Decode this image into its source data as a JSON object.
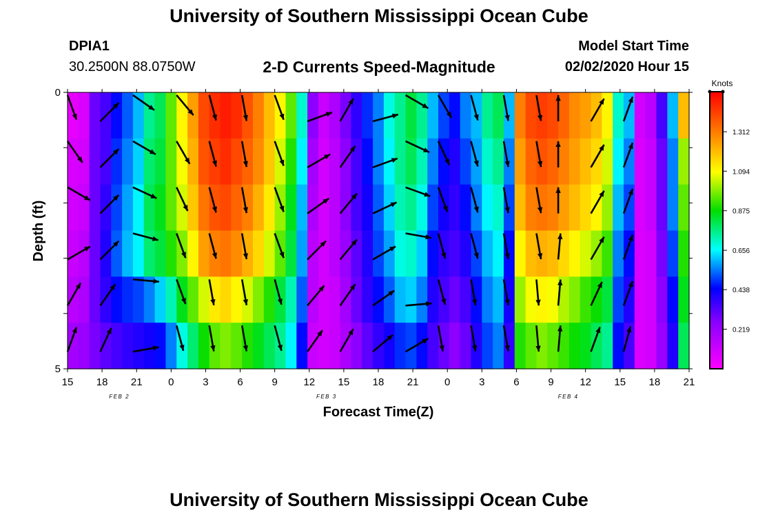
{
  "header": {
    "title": "University of Southern Mississippi Ocean Cube",
    "station_id": "DPIA1",
    "station_coords": "30.2500N 88.0750W",
    "chart_title": "2-D Currents Speed-Magnitude",
    "model_start_label": "Model Start Time",
    "model_start_value": "02/02/2020 Hour 15"
  },
  "footer": {
    "title": "University of Southern Mississippi Ocean Cube"
  },
  "chart_data": {
    "type": "heatmap",
    "title": "2-D Currents Speed-Magnitude",
    "xlabel": "Forecast Time(Z)",
    "ylabel": "Depth (ft)",
    "x_tick_labels": [
      "15",
      "18",
      "21",
      "0",
      "3",
      "6",
      "9",
      "12",
      "15",
      "18",
      "21",
      "0",
      "3",
      "6",
      "9",
      "12",
      "15",
      "18",
      "21"
    ],
    "date_labels": [
      {
        "label": "FEB 2",
        "after_tick": 1
      },
      {
        "label": "FEB 3",
        "after_tick": 7
      },
      {
        "label": "FEB 4",
        "after_tick": 14
      }
    ],
    "y_tick_labels": [
      "0",
      "",
      "",
      "",
      "",
      "5"
    ],
    "ylim": [
      0,
      5
    ],
    "colorbar": {
      "unit": "Knots",
      "ticks": [
        "1.312",
        "1.094",
        "0.875",
        "0.656",
        "0.438",
        "0.219"
      ],
      "tick_values": [
        1.312,
        1.094,
        0.875,
        0.656,
        0.438,
        0.219
      ],
      "range": [
        0.0,
        1.53
      ]
    },
    "time_hours": [
      15,
      16,
      17,
      18,
      19,
      20,
      21,
      22,
      23,
      24,
      25,
      26,
      27,
      28,
      29,
      30,
      31,
      32,
      33,
      34,
      35,
      36,
      37,
      38,
      39,
      40,
      41,
      42,
      43,
      44,
      45,
      46,
      47,
      48,
      49,
      50,
      51,
      52,
      53,
      54,
      55,
      56,
      57,
      58,
      59,
      60,
      61,
      62,
      63,
      64,
      65,
      66,
      67,
      68,
      69,
      70,
      71,
      72
    ],
    "depth_layers": [
      0,
      1,
      2,
      3,
      4,
      5
    ],
    "speed_knots": [
      [
        0.05,
        0.08,
        0.3,
        0.35,
        0.45,
        0.52,
        0.6,
        0.75,
        0.8,
        0.95,
        1.1,
        1.25,
        1.4,
        1.45,
        1.48,
        1.45,
        1.38,
        1.3,
        1.2,
        1.1,
        0.95,
        0.7,
        0.25,
        0.12,
        0.18,
        0.28,
        0.38,
        0.48,
        0.55,
        0.68,
        0.75,
        0.82,
        0.75,
        0.6,
        0.5,
        0.45,
        0.55,
        0.6,
        0.75,
        0.8,
        0.6,
        1.3,
        1.4,
        1.42,
        1.4,
        1.35,
        1.28,
        1.25,
        1.2,
        1.1,
        0.7,
        0.6,
        0.1,
        0.15,
        0.35,
        0.6,
        1.2,
        1.3
      ],
      [
        0.08,
        0.1,
        0.3,
        0.35,
        0.48,
        0.55,
        0.62,
        0.78,
        0.82,
        0.95,
        1.08,
        1.22,
        1.38,
        1.42,
        1.45,
        1.4,
        1.35,
        1.28,
        1.18,
        1.05,
        0.9,
        0.65,
        0.2,
        0.1,
        0.15,
        0.25,
        0.35,
        0.45,
        0.55,
        0.65,
        0.75,
        0.8,
        0.72,
        0.55,
        0.45,
        0.4,
        0.5,
        0.58,
        0.7,
        0.75,
        0.55,
        1.25,
        1.35,
        1.38,
        1.35,
        1.3,
        1.25,
        1.2,
        1.15,
        1.05,
        0.65,
        0.55,
        0.08,
        0.12,
        0.3,
        0.55,
        1.0,
        0.7
      ],
      [
        0.1,
        0.12,
        0.3,
        0.38,
        0.5,
        0.58,
        0.65,
        0.8,
        0.85,
        0.95,
        1.05,
        1.18,
        1.32,
        1.38,
        1.4,
        1.35,
        1.3,
        1.22,
        1.12,
        1.0,
        0.85,
        0.6,
        0.18,
        0.1,
        0.15,
        0.25,
        0.35,
        0.42,
        0.52,
        0.62,
        0.72,
        0.75,
        0.68,
        0.5,
        0.42,
        0.38,
        0.45,
        0.55,
        0.65,
        0.7,
        0.5,
        1.2,
        1.3,
        1.32,
        1.3,
        1.25,
        1.2,
        1.15,
        1.1,
        1.0,
        0.6,
        0.5,
        0.08,
        0.12,
        0.3,
        0.55,
        0.95,
        0.62
      ],
      [
        0.12,
        0.15,
        0.3,
        0.4,
        0.52,
        0.6,
        0.65,
        0.78,
        0.82,
        0.9,
        0.98,
        1.1,
        1.25,
        1.3,
        1.32,
        1.28,
        1.22,
        1.15,
        1.05,
        0.95,
        0.82,
        0.58,
        0.15,
        0.1,
        0.15,
        0.22,
        0.32,
        0.4,
        0.5,
        0.58,
        0.68,
        0.7,
        0.62,
        0.45,
        0.38,
        0.35,
        0.4,
        0.5,
        0.6,
        0.65,
        0.45,
        1.1,
        1.2,
        1.22,
        1.2,
        1.15,
        1.1,
        1.05,
        1.0,
        0.92,
        0.55,
        0.45,
        0.08,
        0.1,
        0.28,
        0.5,
        0.9,
        0.6
      ],
      [
        0.15,
        0.18,
        0.3,
        0.38,
        0.45,
        0.48,
        0.5,
        0.55,
        0.62,
        0.72,
        0.85,
        0.95,
        1.05,
        1.12,
        1.15,
        1.1,
        1.05,
        0.98,
        0.9,
        0.82,
        0.72,
        0.52,
        0.15,
        0.1,
        0.12,
        0.2,
        0.3,
        0.38,
        0.45,
        0.52,
        0.6,
        0.62,
        0.55,
        0.4,
        0.35,
        0.3,
        0.35,
        0.45,
        0.55,
        0.6,
        0.42,
        1.0,
        1.08,
        1.1,
        1.08,
        1.02,
        0.98,
        0.92,
        0.88,
        0.82,
        0.5,
        0.4,
        0.08,
        0.1,
        0.25,
        0.45,
        0.85,
        0.58
      ],
      [
        0.2,
        0.22,
        0.28,
        0.32,
        0.35,
        0.38,
        0.4,
        0.42,
        0.45,
        0.55,
        0.68,
        0.78,
        0.88,
        0.95,
        0.98,
        0.95,
        0.9,
        0.85,
        0.8,
        0.75,
        0.65,
        0.45,
        0.12,
        0.1,
        0.12,
        0.18,
        0.25,
        0.32,
        0.38,
        0.42,
        0.48,
        0.5,
        0.45,
        0.35,
        0.3,
        0.25,
        0.3,
        0.4,
        0.5,
        0.55,
        0.38,
        0.9,
        0.95,
        0.98,
        0.95,
        0.92,
        0.88,
        0.85,
        0.8,
        0.75,
        0.45,
        0.35,
        0.08,
        0.1,
        0.22,
        0.4,
        0.8,
        0.55
      ]
    ],
    "vectors": [
      {
        "hour": 15,
        "dirs_deg": [
          160,
          145,
          120,
          60,
          30,
          20
        ]
      },
      {
        "hour": 18,
        "dirs_deg": [
          45,
          45,
          45,
          45,
          35,
          25
        ]
      },
      {
        "hour": 21,
        "dirs_deg": [
          125,
          120,
          115,
          105,
          95,
          80
        ]
      },
      {
        "hour": 25,
        "dirs_deg": [
          140,
          150,
          155,
          160,
          160,
          165
        ]
      },
      {
        "hour": 28,
        "dirs_deg": [
          165,
          165,
          165,
          165,
          170,
          170
        ]
      },
      {
        "hour": 31,
        "dirs_deg": [
          170,
          170,
          170,
          170,
          170,
          170
        ]
      },
      {
        "hour": 34,
        "dirs_deg": [
          160,
          160,
          160,
          160,
          165,
          165
        ]
      },
      {
        "hour": 37,
        "dirs_deg": [
          70,
          60,
          55,
          45,
          40,
          35
        ]
      },
      {
        "hour": 40,
        "dirs_deg": [
          30,
          35,
          40,
          40,
          35,
          30
        ]
      },
      {
        "hour": 43,
        "dirs_deg": [
          75,
          70,
          65,
          60,
          55,
          50
        ]
      },
      {
        "hour": 46,
        "dirs_deg": [
          120,
          115,
          110,
          100,
          85,
          60
        ]
      },
      {
        "hour": 49,
        "dirs_deg": [
          150,
          155,
          160,
          165,
          165,
          170
        ]
      },
      {
        "hour": 52,
        "dirs_deg": [
          165,
          165,
          165,
          165,
          170,
          170
        ]
      },
      {
        "hour": 55,
        "dirs_deg": [
          170,
          170,
          170,
          170,
          170,
          170
        ]
      },
      {
        "hour": 58,
        "dirs_deg": [
          170,
          170,
          170,
          170,
          175,
          175
        ]
      },
      {
        "hour": 60,
        "dirs_deg": [
          0,
          0,
          0,
          5,
          5,
          5
        ]
      },
      {
        "hour": 63,
        "dirs_deg": [
          30,
          30,
          30,
          30,
          25,
          20
        ]
      },
      {
        "hour": 66,
        "dirs_deg": [
          20,
          20,
          20,
          20,
          20,
          15
        ]
      }
    ],
    "grid": false,
    "legend": "right"
  }
}
